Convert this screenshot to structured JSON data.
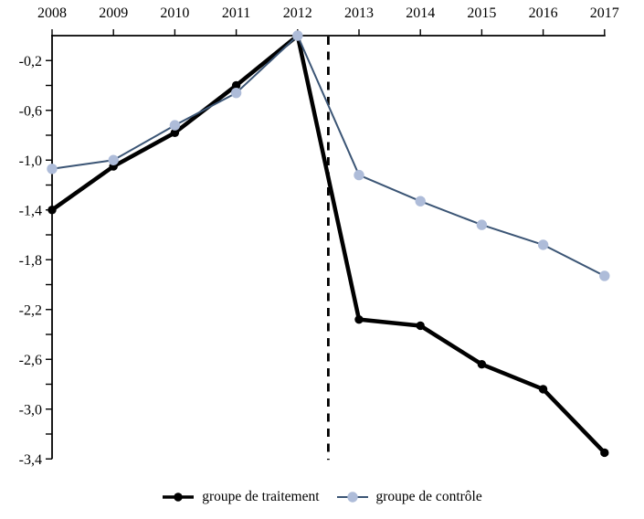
{
  "chart_data": {
    "type": "line",
    "title": "",
    "xlabel": "",
    "ylabel": "",
    "x": [
      2008,
      2009,
      2010,
      2011,
      2012,
      2013,
      2014,
      2015,
      2016,
      2017
    ],
    "series": [
      {
        "id": "traitement",
        "name": "groupe de traitement",
        "line_color": "#000000",
        "marker_color": "#000000",
        "values": [
          -1.4,
          -1.05,
          -0.78,
          -0.4,
          0.0,
          -2.28,
          -2.33,
          -2.64,
          -2.84,
          -3.35
        ]
      },
      {
        "id": "controle",
        "name": "groupe de contrôle",
        "line_color": "#3b5575",
        "marker_color": "#aebcd9",
        "values": [
          -1.07,
          -1.0,
          -0.72,
          -0.46,
          0.0,
          -1.12,
          -1.33,
          -1.52,
          -1.68,
          -1.93
        ]
      }
    ],
    "ylim": [
      -3.4,
      0
    ],
    "xlim": [
      2008,
      2017
    ],
    "x_axis_side": "top",
    "y_axis_side": "left",
    "grid": false,
    "legend_position": "bottom-center",
    "reference_line_x": 2012.5,
    "reference_line_style": "dashed-black-vertical",
    "x_tick_labels": [
      "2008",
      "2009",
      "2010",
      "2011",
      "2012",
      "2013",
      "2014",
      "2015",
      "2016",
      "2017"
    ],
    "y_ticks": [
      {
        "value": -0.2,
        "label": "-0,2"
      },
      {
        "value": -0.4,
        "label": null
      },
      {
        "value": -0.6,
        "label": "-0,6"
      },
      {
        "value": -0.8,
        "label": null
      },
      {
        "value": -1.0,
        "label": "-1,0"
      },
      {
        "value": -1.2,
        "label": null
      },
      {
        "value": -1.4,
        "label": "-1,4"
      },
      {
        "value": -1.6,
        "label": null
      },
      {
        "value": -1.8,
        "label": "-1,8"
      },
      {
        "value": -2.0,
        "label": null
      },
      {
        "value": -2.2,
        "label": "-2,2"
      },
      {
        "value": -2.4,
        "label": null
      },
      {
        "value": -2.6,
        "label": "-2,6"
      },
      {
        "value": -2.8,
        "label": null
      },
      {
        "value": -3.0,
        "label": "-3,0"
      },
      {
        "value": -3.2,
        "label": null
      },
      {
        "value": -3.4,
        "label": "-3,4"
      }
    ]
  }
}
